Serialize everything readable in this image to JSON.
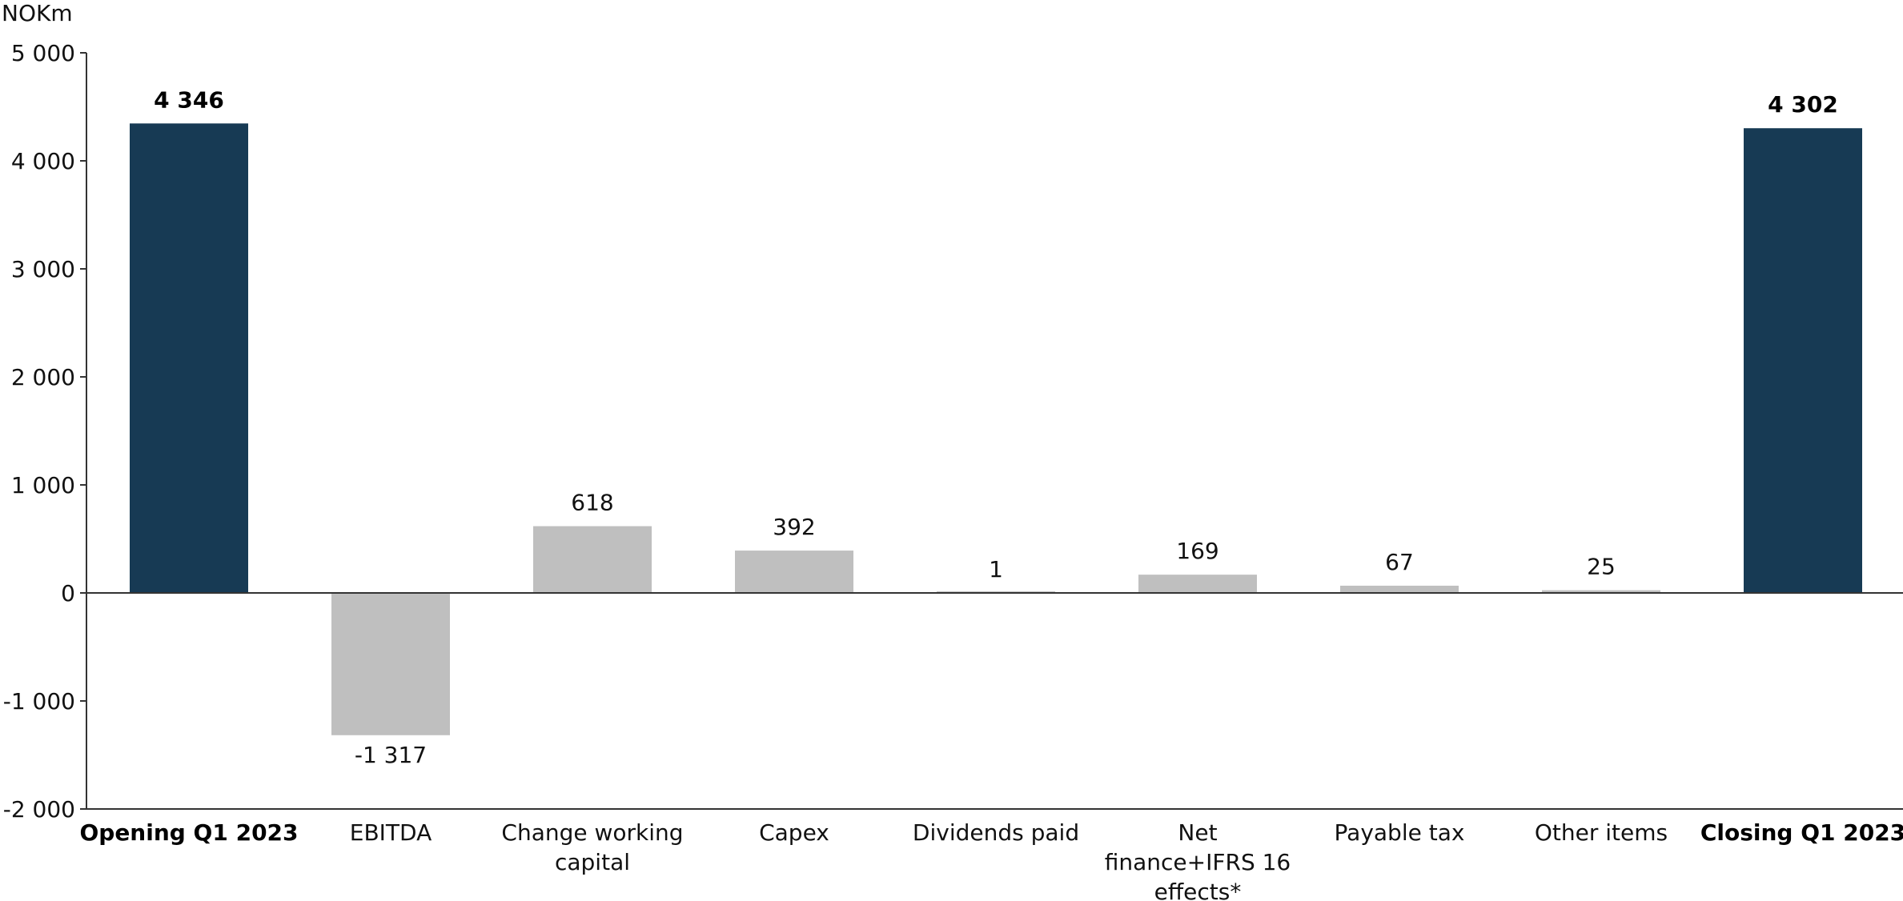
{
  "chart_data": {
    "type": "bar",
    "unit_label": "NOKm",
    "categories": [
      {
        "label": [
          "Opening Q1 2023"
        ],
        "value": 4346,
        "value_label": "4 346",
        "kind": "total"
      },
      {
        "label": [
          "EBITDA"
        ],
        "value": -1317,
        "value_label": "-1 317",
        "kind": "delta"
      },
      {
        "label": [
          "Change working",
          "capital"
        ],
        "value": 618,
        "value_label": "618",
        "kind": "delta"
      },
      {
        "label": [
          "Capex"
        ],
        "value": 392,
        "value_label": "392",
        "kind": "delta"
      },
      {
        "label": [
          "Dividends paid"
        ],
        "value": 1,
        "value_label": "1",
        "kind": "delta"
      },
      {
        "label": [
          "Net",
          "finance+IFRS 16",
          "effects*"
        ],
        "value": 169,
        "value_label": "169",
        "kind": "delta"
      },
      {
        "label": [
          "Payable tax"
        ],
        "value": 67,
        "value_label": "67",
        "kind": "delta"
      },
      {
        "label": [
          "Other items"
        ],
        "value": 25,
        "value_label": "25",
        "kind": "delta"
      },
      {
        "label": [
          "Closing Q1 2023"
        ],
        "value": 4302,
        "value_label": "4 302",
        "kind": "total"
      }
    ],
    "ylim": [
      -2000,
      5000
    ],
    "yticks": [
      {
        "value": 5000,
        "label": "5 000"
      },
      {
        "value": 4000,
        "label": "4 000"
      },
      {
        "value": 3000,
        "label": "3 000"
      },
      {
        "value": 2000,
        "label": "2 000"
      },
      {
        "value": 1000,
        "label": "1 000"
      },
      {
        "value": 0,
        "label": "0"
      },
      {
        "value": -1000,
        "label": "-1 000"
      },
      {
        "value": -2000,
        "label": "-2 000"
      }
    ],
    "grid": false,
    "colors": {
      "total": "#173a54",
      "delta": "#bfbfbf",
      "axis": "#333333"
    }
  }
}
